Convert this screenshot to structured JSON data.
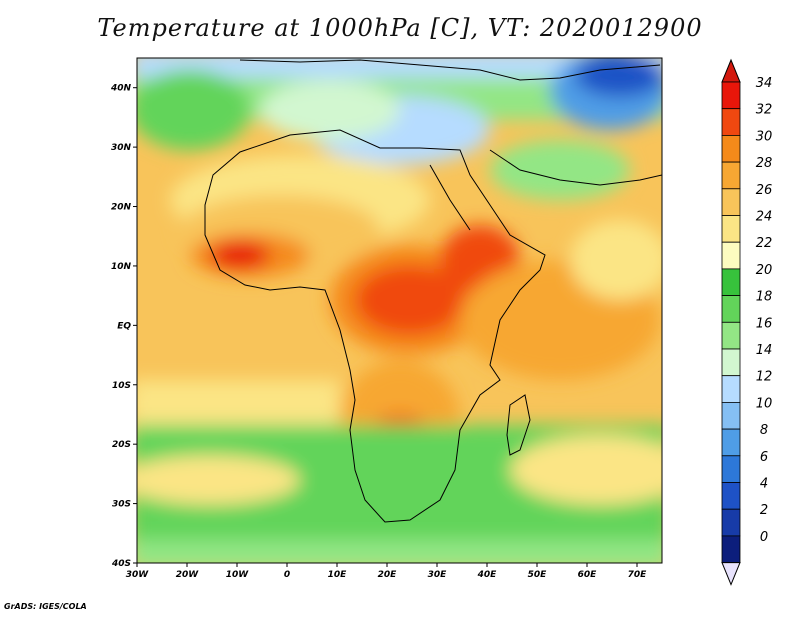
{
  "title": "Temperature at 1000hPa [C], VT: 2020012900",
  "credit": "GrADS: IGES/COLA",
  "map": {
    "lon_range": [
      -30,
      75
    ],
    "lat_range": [
      -40,
      45
    ],
    "lon_ticks": [
      {
        "value": -30,
        "label": "30W"
      },
      {
        "value": -20,
        "label": "20W"
      },
      {
        "value": -10,
        "label": "10W"
      },
      {
        "value": 0,
        "label": "0"
      },
      {
        "value": 10,
        "label": "10E"
      },
      {
        "value": 20,
        "label": "20E"
      },
      {
        "value": 30,
        "label": "30E"
      },
      {
        "value": 40,
        "label": "40E"
      },
      {
        "value": 50,
        "label": "50E"
      },
      {
        "value": 60,
        "label": "60E"
      },
      {
        "value": 70,
        "label": "70E"
      }
    ],
    "lat_ticks": [
      {
        "value": 40,
        "label": "40N"
      },
      {
        "value": 30,
        "label": "30N"
      },
      {
        "value": 20,
        "label": "20N"
      },
      {
        "value": 10,
        "label": "10N"
      },
      {
        "value": 0,
        "label": "EQ"
      },
      {
        "value": -10,
        "label": "10S"
      },
      {
        "value": -20,
        "label": "20S"
      },
      {
        "value": -30,
        "label": "30S"
      },
      {
        "value": -40,
        "label": "40S"
      }
    ]
  },
  "colorbar": {
    "levels": [
      "34",
      "32",
      "30",
      "28",
      "26",
      "24",
      "22",
      "20",
      "18",
      "16",
      "14",
      "12",
      "10",
      "8",
      "6",
      "4",
      "2",
      "0"
    ],
    "colors": [
      "#e8160a",
      "#f04810",
      "#f58a1a",
      "#f7a733",
      "#f8c45a",
      "#fbe585",
      "#fdfcc0",
      "#37c23c",
      "#62d45a",
      "#93e685",
      "#d2f7d0",
      "#b6dcff",
      "#85bff3",
      "#4f9de6",
      "#2d78d9",
      "#1e52c6",
      "#173ba8",
      "#0c1e7c"
    ],
    "over_color": "#d3190e",
    "under_color": "#e8e3fd"
  }
}
